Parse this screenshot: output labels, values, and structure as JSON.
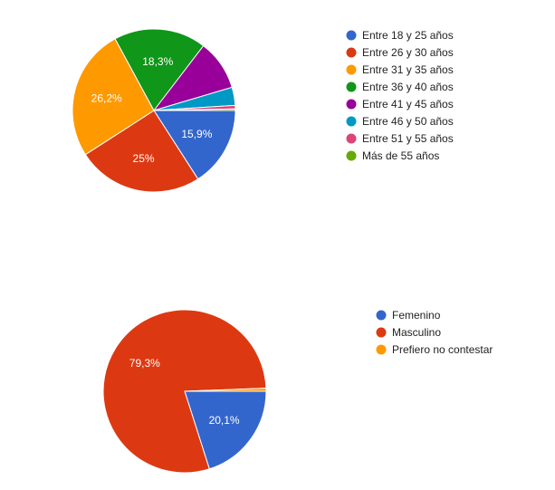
{
  "chart_data": [
    {
      "type": "pie",
      "categories": [
        "Entre 18 y 25 años",
        "Entre 26 y 30 años",
        "Entre 31 y 35 años",
        "Entre 36 y 40 años",
        "Entre 41 y 45 años",
        "Entre 46 y 50 años",
        "Entre 51 y 55 años",
        "Más de 55 años"
      ],
      "values": [
        15.9,
        25,
        26.2,
        18.3,
        10.0,
        3.6,
        0.7,
        0.3
      ],
      "data_labels": [
        "15,9%",
        "25%",
        "26,2%",
        "18,3%",
        "",
        "",
        "",
        ""
      ],
      "colors": [
        "#3366cc",
        "#dc3912",
        "#ff9900",
        "#109618",
        "#990099",
        "#0099c6",
        "#dd4477",
        "#66aa00"
      ],
      "legend_position": "right"
    },
    {
      "type": "pie",
      "categories": [
        "Femenino",
        "Masculino",
        "Prefiero no contestar"
      ],
      "values": [
        20.1,
        79.3,
        0.6
      ],
      "data_labels": [
        "20,1%",
        "79,3%",
        ""
      ],
      "colors": [
        "#3366cc",
        "#dc3912",
        "#ff9900"
      ],
      "legend_position": "right"
    }
  ]
}
